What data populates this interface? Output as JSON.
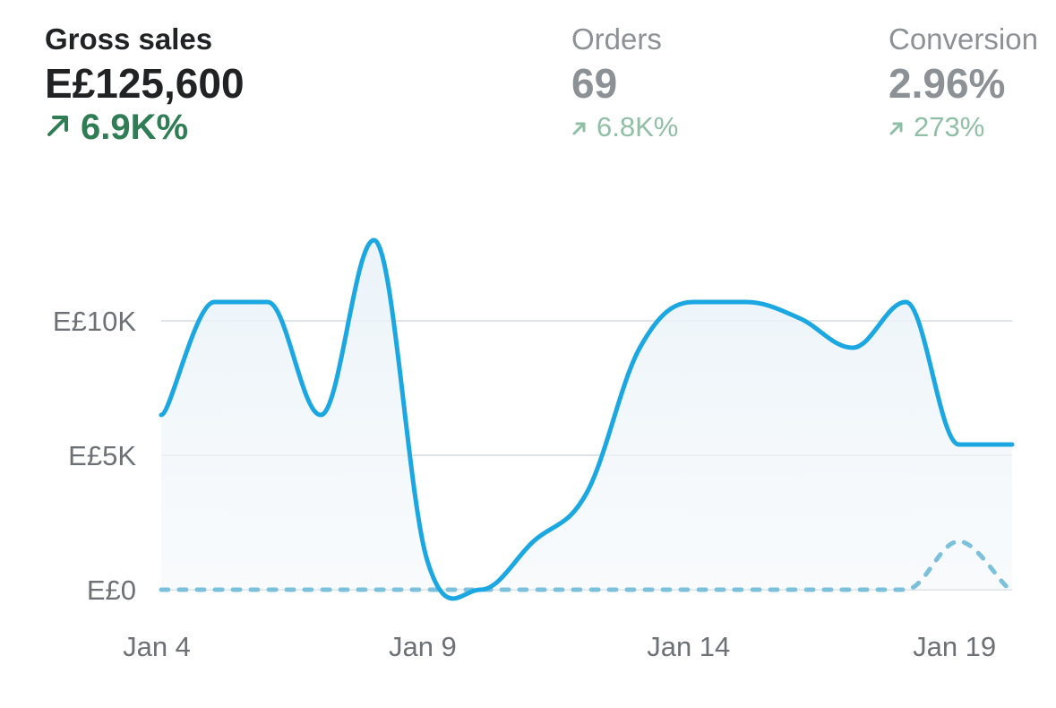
{
  "metrics": [
    {
      "title": "Gross sales",
      "value": "E£125,600",
      "change": "6.9K%"
    },
    {
      "title": "Orders",
      "value": "69",
      "change": "6.8K%"
    },
    {
      "title": "Conversion",
      "value": "2.96%",
      "change": "273%"
    }
  ],
  "colors": {
    "line": "#1ba8e2",
    "comparison": "#7cc1dc",
    "positive": "#2f7d54",
    "positive_muted": "#8fbfa5",
    "grid": "#dfe3e8",
    "axis_text": "#6d7175"
  },
  "chart_data": {
    "type": "area",
    "x": [
      "Jan 4",
      "Jan 5",
      "Jan 6",
      "Jan 7",
      "Jan 8",
      "Jan 9",
      "Jan 10",
      "Jan 11",
      "Jan 12",
      "Jan 13",
      "Jan 14",
      "Jan 15",
      "Jan 16",
      "Jan 17",
      "Jan 18",
      "Jan 19",
      "Jan 20"
    ],
    "x_tick_labels": [
      "Jan 4",
      "Jan 9",
      "Jan 14",
      "Jan 19"
    ],
    "y_tick_labels": [
      "E£0",
      "E£5K",
      "E£10K"
    ],
    "y_ticks": [
      0,
      5000,
      10000
    ],
    "ylim": [
      0,
      13000
    ],
    "series": [
      {
        "values": [
          6500,
          10700,
          10700,
          6500,
          13000,
          1100,
          0,
          1800,
          3600,
          9000,
          10700,
          10700,
          10100,
          9000,
          10700,
          5400,
          5400
        ]
      },
      {
        "values": [
          0,
          0,
          0,
          0,
          0,
          0,
          0,
          0,
          0,
          0,
          0,
          0,
          0,
          0,
          0,
          1800,
          0
        ]
      }
    ],
    "grid": true,
    "legend": "none",
    "title": "",
    "xlabel": "",
    "ylabel": ""
  }
}
